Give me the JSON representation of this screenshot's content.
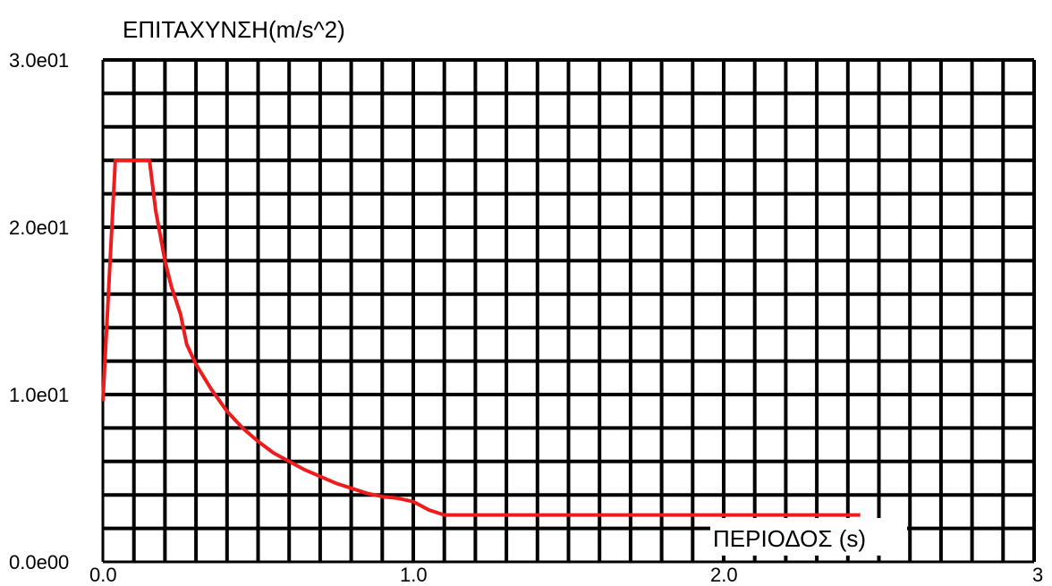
{
  "chart_data": {
    "type": "line",
    "title": "",
    "ylabel": "ΕΠΙΤΑΧΥΝΣΗ(m/s^2)",
    "xlabel": "ΠΕΡΙΟΔΟΣ (s)",
    "xlim": [
      0,
      3
    ],
    "ylim": [
      0,
      30
    ],
    "x_ticks": [
      "0.0",
      "1.0",
      "2.0",
      "3"
    ],
    "y_ticks": [
      "0.0e00",
      "1.0e01",
      "2.0e01",
      "3.0e01"
    ],
    "grid": true,
    "colors": {
      "series": "#ee1c1c",
      "grid": "#000000"
    },
    "series": [
      {
        "values": [
          [
            0.0,
            9.6
          ],
          [
            0.04,
            24.0
          ],
          [
            0.07,
            24.0
          ],
          [
            0.1,
            24.0
          ],
          [
            0.15,
            24.0
          ],
          [
            0.17,
            21.0
          ],
          [
            0.2,
            18.0
          ],
          [
            0.22,
            16.5
          ],
          [
            0.25,
            14.8
          ],
          [
            0.27,
            13.0
          ],
          [
            0.3,
            11.8
          ],
          [
            0.35,
            10.3
          ],
          [
            0.4,
            9.0
          ],
          [
            0.45,
            8.0
          ],
          [
            0.5,
            7.2
          ],
          [
            0.55,
            6.5
          ],
          [
            0.6,
            6.0
          ],
          [
            0.65,
            5.5
          ],
          [
            0.7,
            5.1
          ],
          [
            0.75,
            4.7
          ],
          [
            0.8,
            4.4
          ],
          [
            0.85,
            4.1
          ],
          [
            0.9,
            3.9
          ],
          [
            0.95,
            3.8
          ],
          [
            1.0,
            3.6
          ],
          [
            1.05,
            3.1
          ],
          [
            1.1,
            2.8
          ],
          [
            1.15,
            2.8
          ],
          [
            1.5,
            2.8
          ],
          [
            2.0,
            2.8
          ],
          [
            2.44,
            2.8
          ]
        ]
      }
    ]
  }
}
